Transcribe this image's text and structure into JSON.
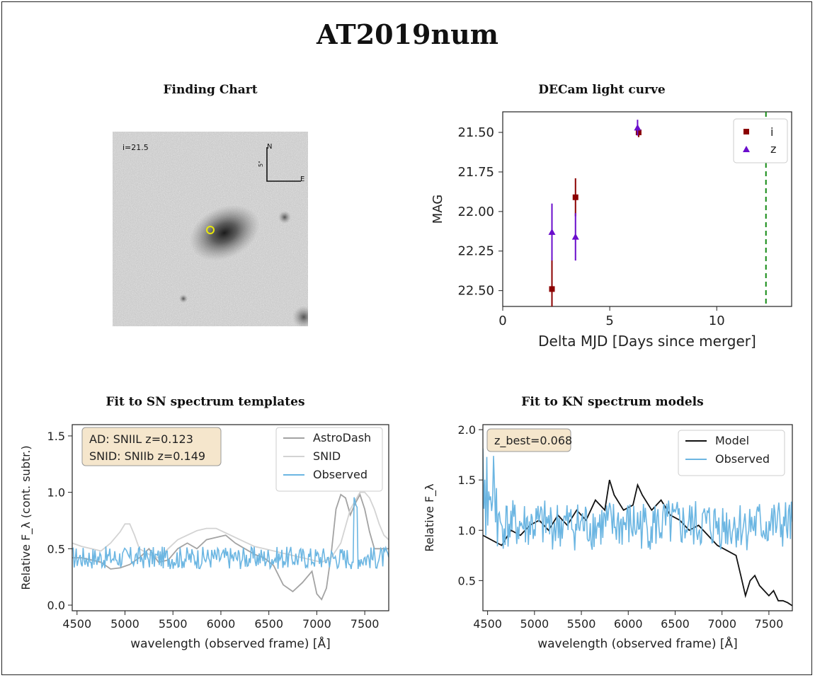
{
  "page": {
    "title": "AT2019num"
  },
  "finding_chart": {
    "title": "Finding Chart",
    "mag_label": "i=21.5",
    "north_label": "N",
    "east_label": "E",
    "scale_label": "5\""
  },
  "colors": {
    "i_band": "#8b0000",
    "z_band": "#6a0dcc",
    "merger_line": "#138a13",
    "astrodash": "#a3a3a3",
    "snid": "#d3d3d3",
    "observed": "#6cb6e2",
    "model": "#111111",
    "box_fill": "#f5e6cc"
  },
  "chart_data": [
    {
      "type": "scatter",
      "title": "DECam light curve",
      "xlabel": "Delta MJD [Days since merger]",
      "ylabel": "MAG",
      "xlim": [
        0,
        13.5
      ],
      "ylim": [
        22.6,
        21.37
      ],
      "y_inverted": true,
      "xticks": [
        "0",
        "5",
        "10"
      ],
      "xtick_values": [
        0,
        5,
        10
      ],
      "yticks": [
        "21.50",
        "21.75",
        "22.00",
        "22.25",
        "22.50"
      ],
      "ytick_values": [
        21.5,
        21.75,
        22.0,
        22.25,
        22.5
      ],
      "legend_position": "top-right",
      "series": [
        {
          "name": "i",
          "marker": "square",
          "x": [
            2.3,
            3.4,
            6.35
          ],
          "y": [
            22.49,
            21.91,
            21.5
          ],
          "err": [
            0.2,
            0.12,
            0.03
          ]
        },
        {
          "name": "z",
          "marker": "triangle",
          "x": [
            2.3,
            3.4,
            6.3
          ],
          "y": [
            22.13,
            22.16,
            21.47
          ],
          "err": [
            0.18,
            0.15,
            0.05
          ]
        }
      ],
      "vline": {
        "x": 12.3,
        "style": "dashed"
      }
    },
    {
      "type": "line",
      "title": "Fit to SN spectrum templates",
      "xlabel": "wavelength (observed frame) [Å]",
      "ylabel": "Relative F_λ (cont. subtr.)",
      "xlim": [
        4450,
        7750
      ],
      "ylim": [
        -0.05,
        1.6
      ],
      "xticks": [
        "4500",
        "5000",
        "5500",
        "6000",
        "6500",
        "7000",
        "7500"
      ],
      "yticks": [
        "0.0",
        "0.5",
        "1.0",
        "1.5"
      ],
      "legend_position": "top-right",
      "annotation": [
        "AD:    SNIIL z=0.123",
        "SNID: SNIIb z=0.149"
      ],
      "series": [
        {
          "name": "AstroDash",
          "x": [
            4450,
            4550,
            4650,
            4750,
            4850,
            4950,
            5050,
            5150,
            5250,
            5350,
            5450,
            5550,
            5650,
            5750,
            5850,
            5950,
            6050,
            6150,
            6250,
            6350,
            6450,
            6550,
            6650,
            6750,
            6850,
            6950,
            7000,
            7050,
            7100,
            7150,
            7200,
            7250,
            7300,
            7350,
            7400,
            7450,
            7500,
            7550,
            7600,
            7650,
            7700,
            7750
          ],
          "y": [
            0.42,
            0.42,
            0.4,
            0.38,
            0.32,
            0.33,
            0.36,
            0.42,
            0.5,
            0.38,
            0.4,
            0.5,
            0.55,
            0.5,
            0.58,
            0.6,
            0.62,
            0.55,
            0.5,
            0.45,
            0.42,
            0.35,
            0.18,
            0.12,
            0.2,
            0.3,
            0.1,
            0.05,
            0.15,
            0.45,
            0.85,
            0.98,
            0.95,
            0.8,
            0.9,
            0.98,
            0.85,
            0.65,
            0.5,
            0.5,
            0.5,
            0.5
          ]
        },
        {
          "name": "SNID",
          "x": [
            4450,
            4550,
            4650,
            4750,
            4850,
            4950,
            5000,
            5050,
            5100,
            5150,
            5250,
            5350,
            5450,
            5550,
            5650,
            5750,
            5850,
            5950,
            6050,
            6150,
            6250,
            6350,
            6450,
            6550,
            6650,
            6750,
            6850,
            6950,
            7050,
            7150,
            7250,
            7350,
            7450,
            7500,
            7550,
            7600,
            7650,
            7700,
            7750
          ],
          "y": [
            0.55,
            0.52,
            0.5,
            0.48,
            0.55,
            0.65,
            0.72,
            0.72,
            0.62,
            0.5,
            0.45,
            0.42,
            0.5,
            0.58,
            0.62,
            0.66,
            0.68,
            0.68,
            0.64,
            0.6,
            0.56,
            0.52,
            0.5,
            0.48,
            0.46,
            0.44,
            0.42,
            0.4,
            0.38,
            0.42,
            0.55,
            0.85,
            1.0,
            1.0,
            0.95,
            0.85,
            0.72,
            0.62,
            0.58
          ]
        },
        {
          "name": "Observed",
          "noisy": true,
          "x_range": [
            4450,
            7750
          ],
          "mean": 0.42,
          "amplitude": 0.1
        }
      ]
    },
    {
      "type": "line",
      "title": "Fit to KN spectrum models",
      "xlabel": "wavelength (observed frame) [Å]",
      "ylabel": "Relative F_λ",
      "xlim": [
        4450,
        7750
      ],
      "ylim": [
        0.2,
        2.05
      ],
      "xticks": [
        "4500",
        "5000",
        "5500",
        "6000",
        "6500",
        "7000",
        "7500"
      ],
      "yticks": [
        "0.5",
        "1.0",
        "1.5",
        "2.0"
      ],
      "legend_position": "top-right",
      "annotation": [
        "z_best=0.068"
      ],
      "series": [
        {
          "name": "Model",
          "x": [
            4450,
            4550,
            4650,
            4750,
            4850,
            4950,
            5050,
            5150,
            5250,
            5350,
            5450,
            5550,
            5650,
            5750,
            5800,
            5850,
            5950,
            6050,
            6100,
            6150,
            6250,
            6350,
            6450,
            6550,
            6650,
            6750,
            6850,
            6950,
            7050,
            7150,
            7200,
            7250,
            7300,
            7350,
            7400,
            7450,
            7500,
            7550,
            7600,
            7650,
            7700,
            7750
          ],
          "y": [
            0.95,
            0.9,
            0.85,
            1.0,
            0.95,
            1.05,
            1.1,
            1.0,
            1.15,
            1.05,
            1.2,
            1.1,
            1.3,
            1.2,
            1.5,
            1.35,
            1.2,
            1.25,
            1.45,
            1.35,
            1.2,
            1.3,
            1.15,
            1.1,
            1.0,
            1.05,
            0.95,
            0.85,
            0.8,
            0.75,
            0.55,
            0.35,
            0.5,
            0.55,
            0.45,
            0.4,
            0.35,
            0.4,
            0.3,
            0.3,
            0.28,
            0.25
          ]
        },
        {
          "name": "Observed",
          "noisy": true,
          "x_range": [
            4450,
            7750
          ],
          "mean": 1.05,
          "amplitude": 0.25
        }
      ]
    }
  ]
}
